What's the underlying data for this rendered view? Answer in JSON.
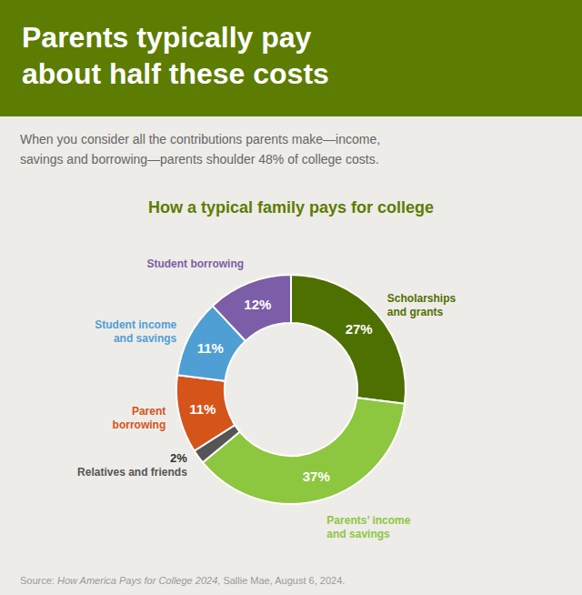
{
  "header": "Parents typically pay\nabout half these costs",
  "intro": "When you consider all the contributions parents make—income,\nsavings and borrowing—parents shoulder 48% of college costs.",
  "source": {
    "plain": "Source: ",
    "italic": "How America Pays for College 2024",
    "rest": ", Sallie Mae, August 6, 2024."
  },
  "chart_data": {
    "type": "donut",
    "title": "How a typical family pays for college",
    "categories": [
      "Scholarships\nand grants",
      "Parents’ income\nand savings",
      "Relatives and friends",
      "Parent\nborrowing",
      "Student income\nand savings",
      "Student borrowing"
    ],
    "values": [
      27,
      37,
      2,
      11,
      11,
      12
    ],
    "value_labels": [
      "27%",
      "37%",
      "2%",
      "11%",
      "11%",
      "12%"
    ],
    "colors": [
      "#4e7001",
      "#8dc63f",
      "#555555",
      "#d4541a",
      "#4f9fd4",
      "#7b5ea7"
    ],
    "data_labels": true
  }
}
